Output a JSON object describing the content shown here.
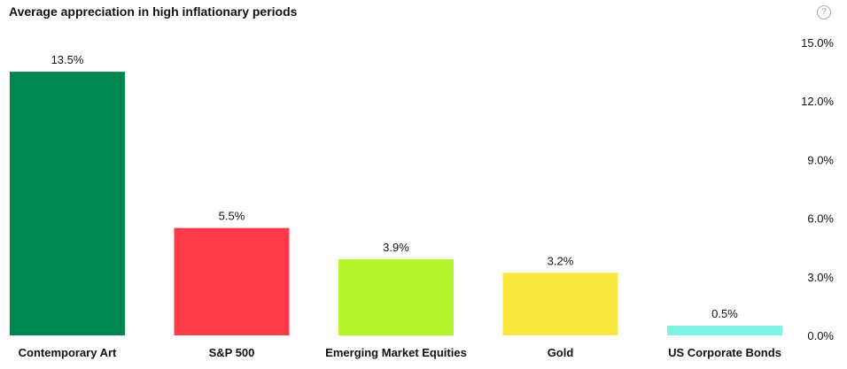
{
  "header": {
    "title": "Average appreciation in high inflationary periods",
    "help_icon": "question-circle-icon",
    "help_glyph": "?"
  },
  "chart_data": {
    "type": "bar",
    "title": "Average appreciation in high inflationary periods",
    "categories": [
      "Contemporary Art",
      "S&P 500",
      "Emerging Market Equities",
      "Gold",
      "US Corporate Bonds"
    ],
    "values": [
      13.5,
      5.5,
      3.9,
      3.2,
      0.5
    ],
    "value_labels": [
      "13.5%",
      "5.5%",
      "3.9%",
      "3.2%",
      "0.5%"
    ],
    "colors": [
      "#008751",
      "#fe3a4b",
      "#b4f52d",
      "#f8e83f",
      "#7ff2e4"
    ],
    "y_ticks": [
      0,
      3,
      6,
      9,
      12,
      15
    ],
    "y_tick_labels": [
      "0.0%",
      "3.0%",
      "6.0%",
      "9.0%",
      "12.0%",
      "15.0%"
    ],
    "ylim": [
      0,
      15
    ],
    "y_axis_position": "right",
    "grid": false,
    "legend": "none",
    "xlabel": "",
    "ylabel": ""
  }
}
